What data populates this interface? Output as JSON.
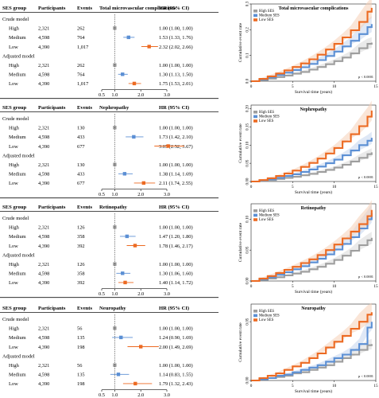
{
  "forest_header": {
    "group": "SES group",
    "participants": "Participants",
    "events": "Events",
    "hr": "HR (95% CI)"
  },
  "colors": {
    "High": "#9e9e9e",
    "Medium": "#5b8fd4",
    "Low": "#ec6a22",
    "band_high": "#d9d9d9",
    "band_medium": "#c4d6ef",
    "band_low": "#f6cfb6"
  },
  "chart_data": [
    {
      "type": "forest",
      "title": "Total microvascular complications",
      "xticks": [
        "0.5",
        "1.0",
        "2.0",
        "3.0"
      ],
      "tick_values": [
        0.5,
        1.0,
        2.0,
        3.0
      ],
      "models": [
        {
          "name": "Crude model",
          "rows": [
            {
              "group": "High",
              "participants": "2,321",
              "events": "262",
              "hr_text": "1.00 (1.00, 1.00)",
              "hr": 1.0,
              "lo": 1.0,
              "hi": 1.0
            },
            {
              "group": "Medium",
              "participants": "4,598",
              "events": "764",
              "hr_text": "1.53 (1.33, 1.76)",
              "hr": 1.53,
              "lo": 1.33,
              "hi": 1.76
            },
            {
              "group": "Low",
              "participants": "4,390",
              "events": "1,017",
              "hr_text": "2.32 (2.02, 2.66)",
              "hr": 2.32,
              "lo": 2.02,
              "hi": 2.66
            }
          ]
        },
        {
          "name": "Adjusted model",
          "rows": [
            {
              "group": "High",
              "participants": "2,321",
              "events": "262",
              "hr_text": "1.00 (1.00, 1.00)",
              "hr": 1.0,
              "lo": 1.0,
              "hi": 1.0
            },
            {
              "group": "Medium",
              "participants": "4,598",
              "events": "764",
              "hr_text": "1.30 (1.13, 1.50)",
              "hr": 1.3,
              "lo": 1.13,
              "hi": 1.5
            },
            {
              "group": "Low",
              "participants": "4,390",
              "events": "1,017",
              "hr_text": "1.75 (1.53, 2.01)",
              "hr": 1.75,
              "lo": 1.53,
              "hi": 2.01
            }
          ]
        }
      ]
    },
    {
      "type": "forest",
      "title": "Nephropathy",
      "xticks": [
        "0.5",
        "1.0",
        "2.0",
        "3.0"
      ],
      "tick_values": [
        0.5,
        1.0,
        2.0,
        3.0
      ],
      "models": [
        {
          "name": "Crude model",
          "rows": [
            {
              "group": "High",
              "participants": "2,321",
              "events": "130",
              "hr_text": "1.00 (1.00, 1.00)",
              "hr": 1.0,
              "lo": 1.0,
              "hi": 1.0
            },
            {
              "group": "Medium",
              "participants": "4,598",
              "events": "433",
              "hr_text": "1.73 (1.42, 2.10)",
              "hr": 1.73,
              "lo": 1.42,
              "hi": 2.1
            },
            {
              "group": "Low",
              "participants": "4,390",
              "events": "677",
              "hr_text": "3.05 (2.52, 3.67)",
              "hr": 3.05,
              "lo": 2.52,
              "hi": 3.67
            }
          ]
        },
        {
          "name": "Adjusted model",
          "rows": [
            {
              "group": "High",
              "participants": "2,321",
              "events": "130",
              "hr_text": "1.00 (1.00, 1.00)",
              "hr": 1.0,
              "lo": 1.0,
              "hi": 1.0
            },
            {
              "group": "Medium",
              "participants": "4,598",
              "events": "433",
              "hr_text": "1.38 (1.14, 1.69)",
              "hr": 1.38,
              "lo": 1.14,
              "hi": 1.69
            },
            {
              "group": "Low",
              "participants": "4,390",
              "events": "677",
              "hr_text": "2.11 (1.74, 2.55)",
              "hr": 2.11,
              "lo": 1.74,
              "hi": 2.55
            }
          ]
        }
      ]
    },
    {
      "type": "forest",
      "title": "Retinopathy",
      "xticks": [
        "0.5",
        "1.0",
        "2.0",
        "3.0"
      ],
      "tick_values": [
        0.5,
        1.0,
        2.0,
        3.0
      ],
      "models": [
        {
          "name": "Crude model",
          "rows": [
            {
              "group": "High",
              "participants": "2,321",
              "events": "126",
              "hr_text": "1.00 (1.00, 1.00)",
              "hr": 1.0,
              "lo": 1.0,
              "hi": 1.0
            },
            {
              "group": "Medium",
              "participants": "4,598",
              "events": "358",
              "hr_text": "1.47 (1.20, 1.80)",
              "hr": 1.47,
              "lo": 1.2,
              "hi": 1.8
            },
            {
              "group": "Low",
              "participants": "4,390",
              "events": "392",
              "hr_text": "1.78 (1.46, 2.17)",
              "hr": 1.78,
              "lo": 1.46,
              "hi": 2.17
            }
          ]
        },
        {
          "name": "Adjusted model",
          "rows": [
            {
              "group": "High",
              "participants": "2,321",
              "events": "126",
              "hr_text": "1.00 (1.00, 1.00)",
              "hr": 1.0,
              "lo": 1.0,
              "hi": 1.0
            },
            {
              "group": "Medium",
              "participants": "4,598",
              "events": "358",
              "hr_text": "1.30 (1.06, 1.60)",
              "hr": 1.3,
              "lo": 1.06,
              "hi": 1.6
            },
            {
              "group": "Low",
              "participants": "4,390",
              "events": "392",
              "hr_text": "1.40 (1.14, 1.72)",
              "hr": 1.4,
              "lo": 1.14,
              "hi": 1.72
            }
          ]
        }
      ]
    },
    {
      "type": "forest",
      "title": "Neuropathy",
      "xticks": [
        "0.5",
        "1.0",
        "2.0",
        "3.0"
      ],
      "tick_values": [
        0.5,
        1.0,
        2.0,
        3.0
      ],
      "models": [
        {
          "name": "Crude model",
          "rows": [
            {
              "group": "High",
              "participants": "2,321",
              "events": "56",
              "hr_text": "1.00 (1.00, 1.00)",
              "hr": 1.0,
              "lo": 1.0,
              "hi": 1.0
            },
            {
              "group": "Medium",
              "participants": "4,598",
              "events": "135",
              "hr_text": "1.24 (0.90, 1.69)",
              "hr": 1.24,
              "lo": 0.9,
              "hi": 1.69
            },
            {
              "group": "Low",
              "participants": "4,390",
              "events": "198",
              "hr_text": "2.00 (1.49, 2.69)",
              "hr": 2.0,
              "lo": 1.49,
              "hi": 2.69
            }
          ]
        },
        {
          "name": "Adjusted model",
          "rows": [
            {
              "group": "High",
              "participants": "2,321",
              "events": "56",
              "hr_text": "1.00 (1.00, 1.00)",
              "hr": 1.0,
              "lo": 1.0,
              "hi": 1.0
            },
            {
              "group": "Medium",
              "participants": "4,598",
              "events": "135",
              "hr_text": "1.14 (0.83, 1.55)",
              "hr": 1.14,
              "lo": 0.83,
              "hi": 1.55
            },
            {
              "group": "Low",
              "participants": "4,390",
              "events": "198",
              "hr_text": "1.79 (1.32, 2.43)",
              "hr": 1.79,
              "lo": 1.32,
              "hi": 2.43
            }
          ]
        }
      ]
    },
    {
      "type": "line",
      "title": "Total microvascular complications",
      "xlabel": "Survival time (years)",
      "ylabel": "Cumulative event rate",
      "xlim": [
        0,
        15
      ],
      "ylim": [
        0,
        0.3
      ],
      "xticks": [
        0,
        5,
        10,
        15
      ],
      "yticks": [
        0.0,
        0.1,
        0.2,
        0.3
      ],
      "ytick_labels": [
        "0.0",
        "0.1",
        "0.2",
        "0.3"
      ],
      "legend": "top-left",
      "p_value": "p < 0.0001",
      "series": [
        {
          "name": "High SES",
          "x": [
            0,
            1,
            2,
            3,
            4,
            5,
            6,
            7,
            8,
            9,
            10,
            11,
            12,
            13,
            14,
            14.5
          ],
          "y": [
            0,
            0.005,
            0.01,
            0.016,
            0.022,
            0.029,
            0.036,
            0.045,
            0.055,
            0.066,
            0.078,
            0.092,
            0.108,
            0.128,
            0.145,
            0.15
          ]
        },
        {
          "name": "Medium SES",
          "x": [
            0,
            1,
            2,
            3,
            4,
            5,
            6,
            7,
            8,
            9,
            10,
            11,
            12,
            13,
            14,
            14.5
          ],
          "y": [
            0,
            0.007,
            0.015,
            0.024,
            0.033,
            0.043,
            0.054,
            0.067,
            0.082,
            0.098,
            0.115,
            0.135,
            0.157,
            0.183,
            0.21,
            0.222
          ]
        },
        {
          "name": "Low SES",
          "x": [
            0,
            1,
            2,
            3,
            4,
            5,
            6,
            7,
            8,
            9,
            10,
            11,
            12,
            13,
            14,
            14.5
          ],
          "y": [
            0,
            0.009,
            0.019,
            0.03,
            0.042,
            0.055,
            0.069,
            0.085,
            0.103,
            0.123,
            0.145,
            0.17,
            0.198,
            0.23,
            0.27,
            0.285
          ]
        }
      ]
    },
    {
      "type": "line",
      "title": "Nephropathy",
      "xlabel": "Survival time (years)",
      "ylabel": "Cumulative event rate",
      "xlim": [
        0,
        15
      ],
      "ylim": [
        0,
        0.21
      ],
      "xticks": [
        0,
        5,
        10,
        15
      ],
      "yticks": [
        0.0,
        0.05,
        0.1,
        0.15,
        0.2
      ],
      "ytick_labels": [
        "0.00",
        "0.05",
        "0.10",
        "0.15",
        "0.20"
      ],
      "legend": "top-left",
      "p_value": "p < 0.0001",
      "series": [
        {
          "name": "High SES",
          "x": [
            0,
            1,
            2,
            3,
            4,
            5,
            6,
            7,
            8,
            9,
            10,
            11,
            12,
            13,
            14,
            14.5
          ],
          "y": [
            0,
            0.002,
            0.004,
            0.007,
            0.01,
            0.013,
            0.017,
            0.021,
            0.026,
            0.032,
            0.038,
            0.046,
            0.055,
            0.065,
            0.075,
            0.08
          ]
        },
        {
          "name": "Medium SES",
          "x": [
            0,
            1,
            2,
            3,
            4,
            5,
            6,
            7,
            8,
            9,
            10,
            11,
            12,
            13,
            14,
            14.5
          ],
          "y": [
            0,
            0.003,
            0.006,
            0.01,
            0.015,
            0.02,
            0.026,
            0.033,
            0.041,
            0.05,
            0.06,
            0.072,
            0.085,
            0.1,
            0.112,
            0.12
          ]
        },
        {
          "name": "Low SES",
          "x": [
            0,
            1,
            2,
            3,
            4,
            5,
            6,
            7,
            8,
            9,
            10,
            11,
            12,
            13,
            14,
            14.5
          ],
          "y": [
            0,
            0.004,
            0.009,
            0.015,
            0.022,
            0.03,
            0.04,
            0.051,
            0.063,
            0.077,
            0.092,
            0.11,
            0.13,
            0.152,
            0.178,
            0.195
          ]
        }
      ]
    },
    {
      "type": "line",
      "title": "Retinopathy",
      "xlabel": "Survival time (years)",
      "ylabel": "Cumulative event rate",
      "xlim": [
        0,
        15
      ],
      "ylim": [
        0,
        0.125
      ],
      "xticks": [
        0,
        5,
        10,
        15
      ],
      "yticks": [
        0.0,
        0.05,
        0.1
      ],
      "ytick_labels": [
        "0.00",
        "0.05",
        "0.10"
      ],
      "legend": "top-left",
      "p_value": "p < 0.0001",
      "series": [
        {
          "name": "High SES",
          "x": [
            0,
            1,
            2,
            3,
            4,
            5,
            6,
            7,
            8,
            9,
            10,
            11,
            12,
            13,
            14,
            14.5
          ],
          "y": [
            0,
            0.002,
            0.004,
            0.006,
            0.009,
            0.012,
            0.015,
            0.019,
            0.023,
            0.028,
            0.034,
            0.041,
            0.049,
            0.058,
            0.066,
            0.07
          ]
        },
        {
          "name": "Medium SES",
          "x": [
            0,
            1,
            2,
            3,
            4,
            5,
            6,
            7,
            8,
            9,
            10,
            11,
            12,
            13,
            14,
            14.5
          ],
          "y": [
            0,
            0.003,
            0.006,
            0.01,
            0.014,
            0.019,
            0.024,
            0.03,
            0.036,
            0.043,
            0.051,
            0.06,
            0.071,
            0.085,
            0.1,
            0.11
          ]
        },
        {
          "name": "Low SES",
          "x": [
            0,
            1,
            2,
            3,
            4,
            5,
            6,
            7,
            8,
            9,
            10,
            11,
            12,
            13,
            14,
            14.5
          ],
          "y": [
            0,
            0.004,
            0.008,
            0.013,
            0.018,
            0.023,
            0.029,
            0.035,
            0.042,
            0.05,
            0.059,
            0.069,
            0.08,
            0.092,
            0.105,
            0.115
          ]
        }
      ]
    },
    {
      "type": "line",
      "title": "Neuropathy",
      "xlabel": "Survival time (years)",
      "ylabel": "Cumulative event rate",
      "xlim": [
        0,
        15
      ],
      "ylim": [
        0,
        0.065
      ],
      "xticks": [
        0,
        5,
        10,
        15
      ],
      "yticks": [
        0.0,
        0.05
      ],
      "ytick_labels": [
        "0.00",
        "0.05"
      ],
      "legend": "top-left",
      "p_value": "p < 0.0001",
      "series": [
        {
          "name": "High SES",
          "x": [
            0,
            1,
            2,
            3,
            4,
            5,
            6,
            7,
            8,
            9,
            10,
            11,
            12,
            13,
            14,
            14.5
          ],
          "y": [
            0,
            0.001,
            0.002,
            0.003,
            0.004,
            0.006,
            0.007,
            0.009,
            0.011,
            0.013,
            0.016,
            0.019,
            0.022,
            0.026,
            0.03,
            0.031
          ]
        },
        {
          "name": "Medium SES",
          "x": [
            0,
            1,
            2,
            3,
            4,
            5,
            6,
            7,
            8,
            9,
            10,
            11,
            12,
            13,
            14,
            14.5
          ],
          "y": [
            0,
            0.001,
            0.002,
            0.004,
            0.005,
            0.007,
            0.009,
            0.011,
            0.013,
            0.016,
            0.019,
            0.022,
            0.026,
            0.031,
            0.045,
            0.05
          ]
        },
        {
          "name": "Low SES",
          "x": [
            0,
            1,
            2,
            3,
            4,
            5,
            6,
            7,
            8,
            9,
            10,
            11,
            12,
            13,
            14,
            14.5
          ],
          "y": [
            0,
            0.002,
            0.004,
            0.006,
            0.009,
            0.012,
            0.015,
            0.019,
            0.023,
            0.028,
            0.033,
            0.038,
            0.044,
            0.05,
            0.056,
            0.058
          ]
        }
      ]
    }
  ]
}
